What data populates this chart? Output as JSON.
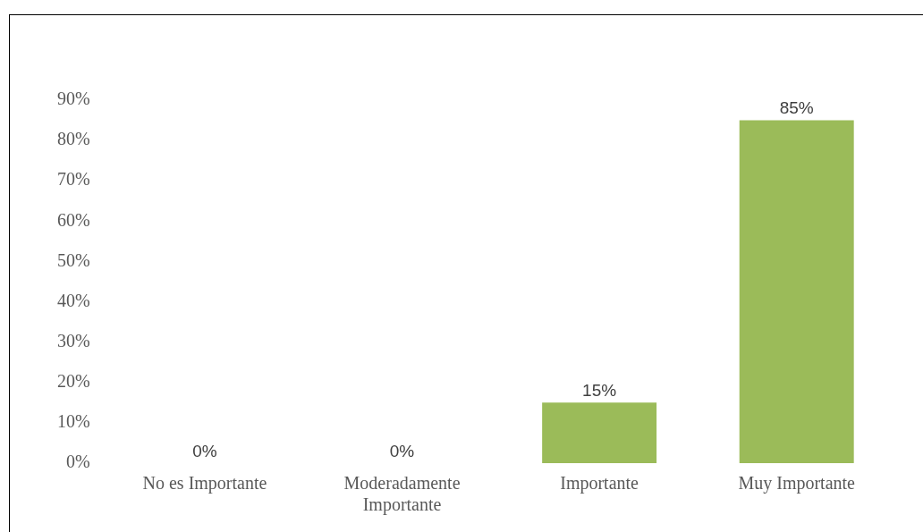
{
  "chart_data": {
    "type": "bar",
    "categories": [
      "No es Importante",
      "Moderadamente Importante",
      "Importante",
      "Muy Importante"
    ],
    "values": [
      0,
      0,
      15,
      85
    ],
    "value_labels": [
      "0%",
      "0%",
      "15%",
      "85%"
    ],
    "color": "#9bbb59",
    "ylim": [
      0,
      90
    ],
    "yticks": [
      {
        "value": 0,
        "label": "0%"
      },
      {
        "value": 10,
        "label": "10%"
      },
      {
        "value": 20,
        "label": "20%"
      },
      {
        "value": 30,
        "label": "30%"
      },
      {
        "value": 40,
        "label": "40%"
      },
      {
        "value": 50,
        "label": "50%"
      },
      {
        "value": 60,
        "label": "60%"
      },
      {
        "value": 70,
        "label": "70%"
      },
      {
        "value": 80,
        "label": "80%"
      },
      {
        "value": 90,
        "label": "90%"
      }
    ],
    "grid": false,
    "legend": false
  }
}
